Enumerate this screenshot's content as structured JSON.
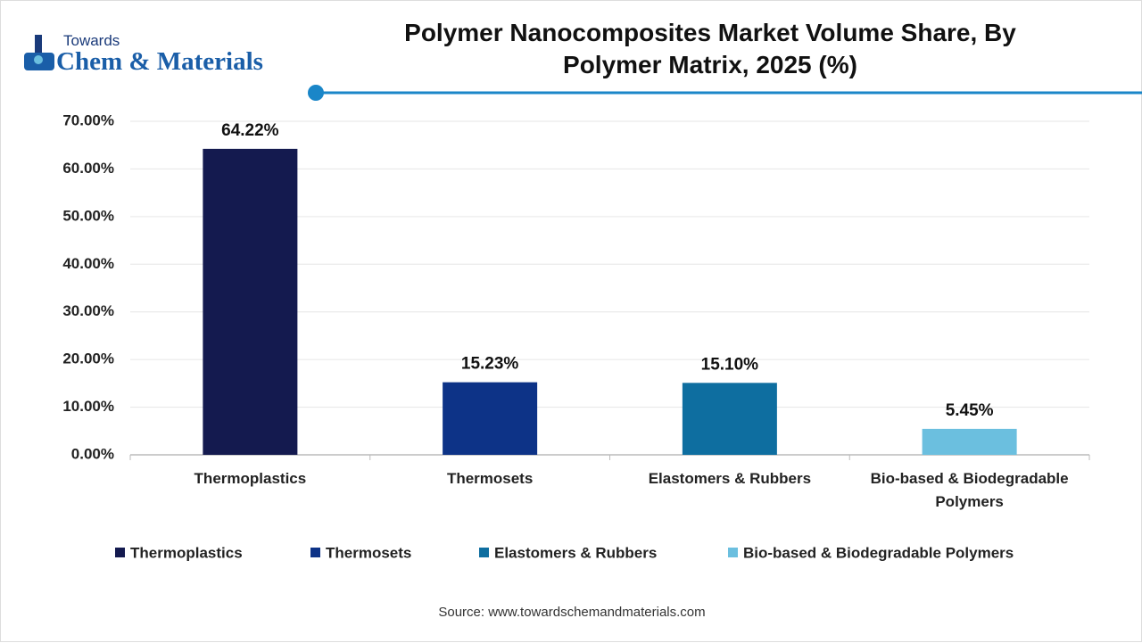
{
  "logo": {
    "line1": "Towards",
    "line2": "Chem & Materials"
  },
  "chart_data": {
    "type": "bar",
    "title": "Polymer Nanocomposites Market Volume Share, By Polymer Matrix, 2025 (%)",
    "categories": [
      "Thermoplastics",
      "Thermosets",
      "Elastomers & Rubbers",
      "Bio-based & Biodegradable Polymers"
    ],
    "values": [
      64.22,
      15.23,
      15.1,
      5.45
    ],
    "value_labels": [
      "64.22%",
      "15.23%",
      "15.10%",
      "5.45%"
    ],
    "colors": [
      "#141a4f",
      "#0d3387",
      "#0e6ea0",
      "#6bbfdf"
    ],
    "ylim": [
      0,
      70
    ],
    "yticks": [
      {
        "value": 0,
        "label": "0.00%"
      },
      {
        "value": 10,
        "label": "10.00%"
      },
      {
        "value": 20,
        "label": "20.00%"
      },
      {
        "value": 30,
        "label": "30.00%"
      },
      {
        "value": 40,
        "label": "40.00%"
      },
      {
        "value": 50,
        "label": "50.00%"
      },
      {
        "value": 60,
        "label": "60.00%"
      },
      {
        "value": 70,
        "label": "70.00%"
      }
    ],
    "grid": true,
    "legend": "bottom",
    "source": "Source: www.towardschemandmaterials.com"
  }
}
